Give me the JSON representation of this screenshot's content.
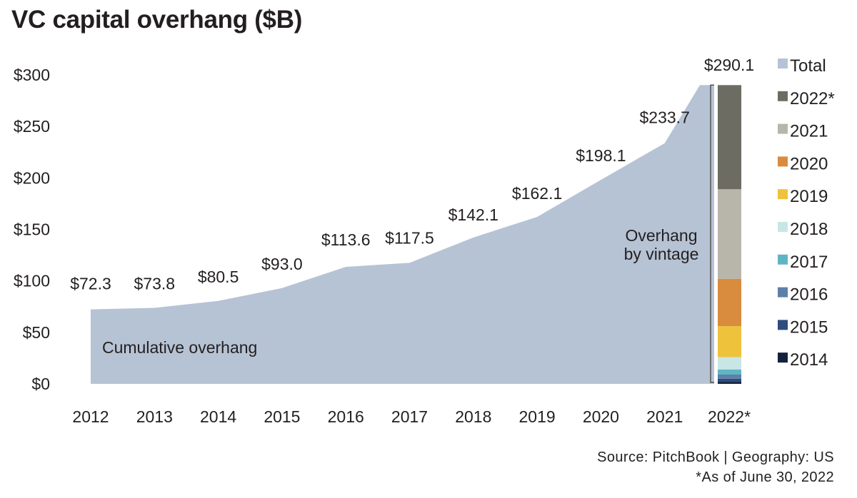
{
  "title": "VC capital overhang ($B)",
  "chart_data": {
    "type": "area",
    "title": "VC capital overhang ($B)",
    "x": [
      "2012",
      "2013",
      "2014",
      "2015",
      "2016",
      "2017",
      "2018",
      "2019",
      "2020",
      "2021",
      "2022*"
    ],
    "series": [
      {
        "name": "Total",
        "values": [
          72.3,
          73.8,
          80.5,
          93.0,
          113.6,
          117.5,
          142.1,
          162.1,
          198.1,
          233.7,
          290.1
        ],
        "color": "#b6c3d4"
      }
    ],
    "data_labels": [
      "$72.3",
      "$73.8",
      "$80.5",
      "$93.0",
      "$113.6",
      "$117.5",
      "$142.1",
      "$162.1",
      "$198.1",
      "$233.7",
      "$290.1"
    ],
    "yticks": [
      0,
      50,
      100,
      150,
      200,
      250,
      300
    ],
    "ytick_labels": [
      "$0",
      "$50",
      "$100",
      "$150",
      "$200",
      "$250",
      "$300"
    ],
    "ylim": [
      0,
      300
    ],
    "grid": false,
    "legend_position": "right",
    "stacked_bar": {
      "category": "2022*",
      "segments": [
        {
          "name": "2014",
          "value": 2.0,
          "color": "#14213d"
        },
        {
          "name": "2015",
          "value": 3.0,
          "color": "#2d4d7c"
        },
        {
          "name": "2016",
          "value": 4.0,
          "color": "#5f7fa8"
        },
        {
          "name": "2017",
          "value": 5.0,
          "color": "#5eb6c3"
        },
        {
          "name": "2018",
          "value": 12.0,
          "color": "#c8e6e6"
        },
        {
          "name": "2019",
          "value": 30.0,
          "color": "#efc23b"
        },
        {
          "name": "2020",
          "value": 46.0,
          "color": "#d98b3e"
        },
        {
          "name": "2021",
          "value": 87.0,
          "color": "#b8b6aa"
        },
        {
          "name": "2022*",
          "value": 101.1,
          "color": "#6d6c63"
        }
      ]
    },
    "legend": [
      {
        "name": "Total",
        "color": "#b6c3d4"
      },
      {
        "name": "2022*",
        "color": "#6d6c63"
      },
      {
        "name": "2021",
        "color": "#b8b6aa"
      },
      {
        "name": "2020",
        "color": "#d98b3e"
      },
      {
        "name": "2019",
        "color": "#efc23b"
      },
      {
        "name": "2018",
        "color": "#c8e6e6"
      },
      {
        "name": "2017",
        "color": "#5eb6c3"
      },
      {
        "name": "2016",
        "color": "#5f7fa8"
      },
      {
        "name": "2015",
        "color": "#2d4d7c"
      },
      {
        "name": "2014",
        "color": "#14213d"
      }
    ],
    "annotations": {
      "area_label": "Cumulative overhang",
      "bracket_label_line1": "Overhang",
      "bracket_label_line2": "by vintage"
    }
  },
  "source": {
    "line1": "Source: PitchBook  |  Geography: US",
    "line2": "*As of June 30, 2022"
  }
}
